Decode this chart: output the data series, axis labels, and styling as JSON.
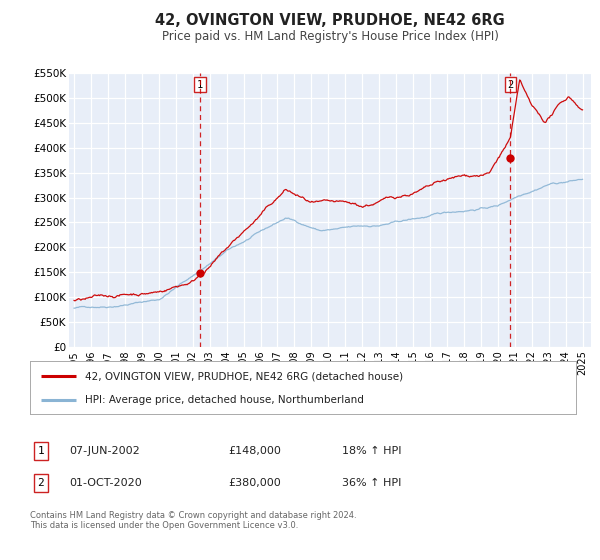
{
  "title": "42, OVINGTON VIEW, PRUDHOE, NE42 6RG",
  "subtitle": "Price paid vs. HM Land Registry's House Price Index (HPI)",
  "ylim": [
    0,
    550000
  ],
  "yticks": [
    0,
    50000,
    100000,
    150000,
    200000,
    250000,
    300000,
    350000,
    400000,
    450000,
    500000,
    550000
  ],
  "ytick_labels": [
    "£0",
    "£50K",
    "£100K",
    "£150K",
    "£200K",
    "£250K",
    "£300K",
    "£350K",
    "£400K",
    "£450K",
    "£500K",
    "£550K"
  ],
  "xlim_start": 1994.7,
  "xlim_end": 2025.5,
  "xtick_years": [
    1995,
    1996,
    1997,
    1998,
    1999,
    2000,
    2001,
    2002,
    2003,
    2004,
    2005,
    2006,
    2007,
    2008,
    2009,
    2010,
    2011,
    2012,
    2013,
    2014,
    2015,
    2016,
    2017,
    2018,
    2019,
    2020,
    2021,
    2022,
    2023,
    2024,
    2025
  ],
  "sale1_date": 2002.44,
  "sale1_price": 148000,
  "sale1_label": "1",
  "sale2_date": 2020.75,
  "sale2_price": 380000,
  "sale2_label": "2",
  "property_color": "#cc0000",
  "hpi_color": "#8ab4d4",
  "plot_bg_color": "#e8eef8",
  "grid_color": "#ffffff",
  "legend1_text": "42, OVINGTON VIEW, PRUDHOE, NE42 6RG (detached house)",
  "legend2_text": "HPI: Average price, detached house, Northumberland",
  "note1_date": "07-JUN-2002",
  "note1_price": "£148,000",
  "note1_hpi": "18% ↑ HPI",
  "note2_date": "01-OCT-2020",
  "note2_price": "£380,000",
  "note2_hpi": "36% ↑ HPI",
  "copyright_text": "Contains HM Land Registry data © Crown copyright and database right 2024.\nThis data is licensed under the Open Government Licence v3.0."
}
